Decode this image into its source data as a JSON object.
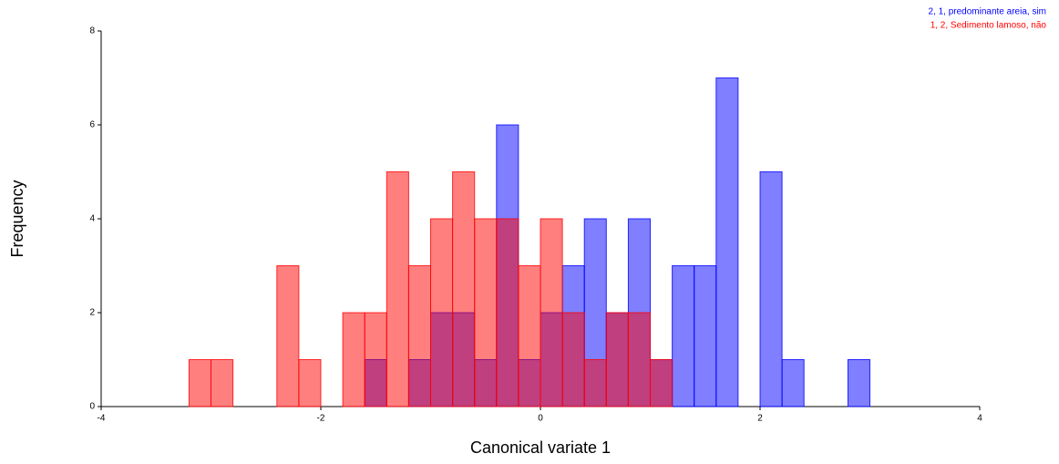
{
  "chart_data": {
    "type": "histogram",
    "xlabel": "Canonical variate 1",
    "ylabel": "Frequency",
    "bins": [
      -3.2,
      -3.0,
      -2.8,
      -2.6,
      -2.4,
      -2.2,
      -2.0,
      -1.8,
      -1.6,
      -1.4,
      -1.2,
      -1.0,
      -0.8,
      -0.6,
      -0.4,
      -0.2,
      0,
      0.2,
      0.4,
      0.6,
      0.8,
      1.0,
      1.2,
      1.4,
      1.6,
      1.8,
      2.0,
      2.2,
      2.4,
      2.6,
      2.8,
      3.0
    ],
    "series": [
      {
        "name": "2, 1, predominante areia, sim",
        "color": "#0000ff",
        "values": [
          0,
          0,
          0,
          0,
          0,
          0,
          0,
          0,
          1,
          0,
          1,
          2,
          2,
          1,
          6,
          1,
          2,
          3,
          4,
          2,
          4,
          1,
          3,
          3,
          7,
          0,
          5,
          1,
          0,
          0,
          1
        ]
      },
      {
        "name": "1, 2, Sedimento lamoso, não",
        "color": "#ff0000",
        "values": [
          1,
          1,
          0,
          0,
          3,
          1,
          0,
          2,
          2,
          5,
          3,
          4,
          5,
          4,
          4,
          3,
          4,
          2,
          1,
          2,
          2,
          1,
          0,
          0,
          0,
          0,
          0,
          0,
          0,
          0,
          0
        ]
      }
    ],
    "xlim": [
      -4,
      4
    ],
    "xticks": [
      -4,
      -2,
      0,
      2,
      4
    ],
    "ylim": [
      0,
      8
    ],
    "yticks": [
      0,
      2,
      4,
      6,
      8
    ],
    "legend": "top-right"
  }
}
